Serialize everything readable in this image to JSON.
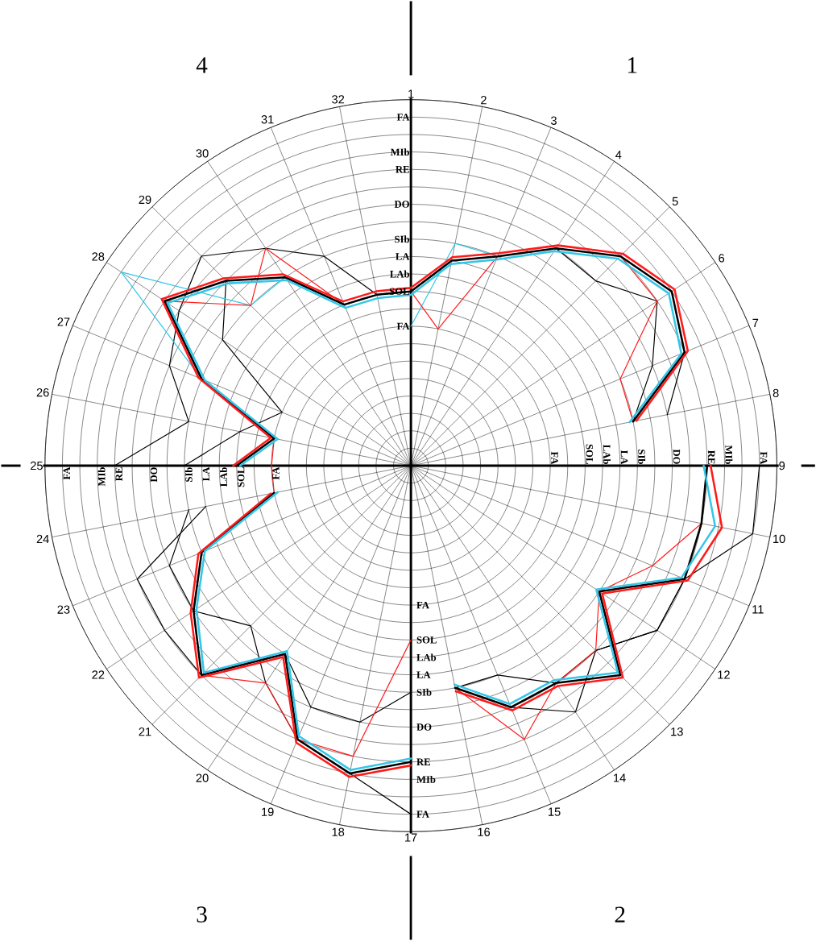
{
  "chart_data": {
    "type": "radar",
    "categories": [
      "1",
      "2",
      "3",
      "4",
      "5",
      "6",
      "7",
      "8",
      "9",
      "10",
      "11",
      "12",
      "13",
      "14",
      "15",
      "16",
      "17",
      "18",
      "19",
      "20",
      "21",
      "22",
      "23",
      "24",
      "25",
      "26",
      "27",
      "28",
      "29",
      "30",
      "31",
      "32"
    ],
    "ylim": [
      0,
      21
    ],
    "yticks": [
      {
        "value": 8,
        "label": "FA"
      },
      {
        "value": 10,
        "label": "SOL"
      },
      {
        "value": 11,
        "label": "LAb"
      },
      {
        "value": 12,
        "label": "LA"
      },
      {
        "value": 13,
        "label": "SIb"
      },
      {
        "value": 15,
        "label": "DO"
      },
      {
        "value": 17,
        "label": "RE"
      },
      {
        "value": 18,
        "label": "MIb"
      },
      {
        "value": 20,
        "label": "FA"
      }
    ],
    "grid": true,
    "annotations": [
      "4",
      "1",
      "3",
      "2"
    ],
    "series": [
      {
        "color": "#000000",
        "values": [
          10,
          12,
          13,
          15,
          15,
          17,
          15,
          13,
          null,
          null,
          null,
          null,
          null,
          null,
          null,
          null,
          null,
          null,
          null,
          null,
          null,
          null,
          null,
          null,
          null,
          null,
          null,
          null,
          null,
          null,
          null,
          null
        ]
      },
      {
        "color": "#000000",
        "values": [
          null,
          null,
          null,
          null,
          null,
          null,
          null,
          null,
          20,
          20,
          17,
          17,
          15,
          17,
          15,
          13,
          null,
          null,
          null,
          null,
          null,
          null,
          null,
          null,
          null,
          null,
          null,
          null,
          null,
          null,
          null,
          null
        ]
      },
      {
        "color": "#000000",
        "values": [
          null,
          null,
          null,
          null,
          null,
          null,
          null,
          null,
          null,
          null,
          null,
          null,
          null,
          null,
          null,
          null,
          20,
          18,
          17,
          15,
          13,
          15,
          15,
          13,
          null,
          null,
          null,
          null,
          null,
          null,
          null,
          null
        ]
      },
      {
        "color": "#000000",
        "values": [
          10,
          null,
          null,
          null,
          null,
          null,
          null,
          null,
          null,
          null,
          null,
          null,
          null,
          null,
          null,
          null,
          null,
          null,
          null,
          null,
          null,
          null,
          null,
          null,
          17,
          13,
          15,
          16,
          17,
          15,
          13,
          10
        ]
      },
      {
        "color": "#000000",
        "values": [
          null,
          null,
          null,
          null,
          17,
          18,
          17,
          15,
          null,
          null,
          null,
          null,
          null,
          null,
          null,
          null,
          null,
          null,
          null,
          null,
          null,
          null,
          null,
          null,
          null,
          null,
          null,
          null,
          null,
          null,
          null,
          null
        ]
      },
      {
        "color": "#000000",
        "values": [
          null,
          null,
          null,
          null,
          null,
          null,
          null,
          null,
          17,
          17,
          17,
          17,
          15,
          15,
          13,
          13,
          null,
          null,
          null,
          null,
          null,
          null,
          null,
          null,
          null,
          null,
          null,
          null,
          null,
          null,
          null,
          null
        ]
      },
      {
        "color": "#000000",
        "values": [
          null,
          null,
          null,
          null,
          null,
          null,
          null,
          null,
          null,
          null,
          null,
          null,
          null,
          null,
          null,
          null,
          13,
          15,
          15,
          13,
          17,
          17,
          17,
          12,
          null,
          null,
          null,
          null,
          null,
          null,
          null,
          null
        ]
      },
      {
        "color": "#000000",
        "values": [
          10,
          null,
          null,
          null,
          null,
          null,
          null,
          null,
          null,
          null,
          null,
          null,
          null,
          null,
          null,
          null,
          null,
          null,
          null,
          null,
          null,
          null,
          null,
          null,
          13,
          10,
          8,
          13,
          15,
          13,
          10,
          10
        ]
      },
      {
        "color": "#33c6e8",
        "values": [
          8,
          13,
          13,
          null,
          null,
          null,
          null,
          null,
          null,
          null,
          null,
          null,
          null,
          null,
          null,
          null,
          null,
          null,
          null,
          null,
          null,
          null,
          null,
          null,
          null,
          null,
          null,
          null,
          null,
          null,
          null,
          null
        ]
      },
      {
        "color": "#33c6e8",
        "values": [
          10,
          null,
          null,
          null,
          null,
          null,
          null,
          null,
          null,
          null,
          null,
          null,
          null,
          null,
          null,
          null,
          null,
          null,
          null,
          null,
          null,
          null,
          null,
          null,
          10,
          8,
          13,
          20,
          13,
          13,
          10,
          10
        ]
      },
      {
        "color": "#ff1a1a",
        "values": [
          10,
          8,
          13,
          null,
          null,
          null,
          null,
          null,
          null,
          null,
          null,
          null,
          null,
          null,
          null,
          null,
          null,
          null,
          null,
          null,
          null,
          null,
          null,
          null,
          null,
          null,
          null,
          null,
          null,
          null,
          null,
          null
        ]
      },
      {
        "color": "#ff1a1a",
        "values": [
          null,
          null,
          null,
          null,
          17,
          17,
          13,
          13,
          null,
          null,
          null,
          null,
          null,
          null,
          null,
          null,
          null,
          null,
          null,
          null,
          null,
          null,
          null,
          null,
          null,
          null,
          null,
          null,
          null,
          null,
          null,
          null
        ]
      },
      {
        "color": "#ff1a1a",
        "values": [
          null,
          null,
          null,
          null,
          null,
          null,
          null,
          null,
          17,
          17,
          15,
          13,
          15,
          15,
          17,
          13,
          null,
          null,
          null,
          null,
          null,
          null,
          null,
          null,
          null,
          null,
          null,
          null,
          null,
          null,
          null,
          null
        ]
      },
      {
        "color": "#ff1a1a",
        "values": [
          null,
          null,
          null,
          null,
          null,
          null,
          null,
          null,
          null,
          null,
          null,
          null,
          null,
          null,
          null,
          null,
          10,
          17,
          17,
          15,
          17,
          15,
          13,
          8,
          8,
          8,
          null,
          null,
          null,
          null,
          null,
          null
        ]
      },
      {
        "color": "#ff1a1a",
        "values": [
          null,
          null,
          null,
          null,
          null,
          null,
          null,
          null,
          null,
          null,
          null,
          null,
          null,
          null,
          null,
          null,
          null,
          null,
          null,
          null,
          null,
          null,
          null,
          null,
          null,
          null,
          null,
          17,
          13,
          15,
          10,
          null
        ]
      },
      {
        "color": "#000000",
        "values": [
          10,
          12,
          13,
          15,
          17,
          18,
          17,
          13,
          null,
          null,
          null,
          null,
          null,
          null,
          null,
          null,
          null,
          null,
          null,
          null,
          null,
          null,
          null,
          null,
          null,
          null,
          null,
          null,
          null,
          null,
          null,
          null
        ]
      },
      {
        "color": "#000000",
        "values": [
          null,
          null,
          null,
          null,
          null,
          null,
          null,
          null,
          17,
          17,
          17,
          13,
          17,
          15,
          15,
          13,
          null,
          null,
          null,
          null,
          null,
          null,
          null,
          null,
          null,
          null,
          null,
          null,
          null,
          null,
          null,
          null
        ]
      },
      {
        "color": "#000000",
        "values": [
          null,
          null,
          null,
          null,
          null,
          null,
          null,
          null,
          null,
          null,
          null,
          null,
          null,
          null,
          null,
          null,
          17,
          18,
          17,
          13,
          17,
          15,
          13,
          8,
          null,
          null,
          null,
          null,
          null,
          null,
          null,
          null
        ]
      },
      {
        "color": "#000000",
        "values": [
          10,
          null,
          null,
          null,
          null,
          null,
          null,
          null,
          null,
          null,
          null,
          null,
          null,
          null,
          null,
          null,
          null,
          null,
          null,
          null,
          null,
          null,
          null,
          null,
          10,
          8,
          13,
          17,
          15,
          13,
          10,
          10
        ]
      },
      {
        "color": "#33c6e8",
        "values": [
          9.8,
          11.8,
          12.8,
          14.8,
          16.8,
          17.8,
          16.8,
          12.8,
          null,
          null,
          null,
          null,
          null,
          null,
          null,
          null,
          null,
          null,
          null,
          null,
          null,
          null,
          null,
          null,
          null,
          null,
          null,
          null,
          null,
          null,
          null,
          null
        ]
      },
      {
        "color": "#33c6e8",
        "values": [
          null,
          null,
          null,
          null,
          null,
          null,
          null,
          null,
          16.8,
          17.8,
          16.8,
          12.8,
          16.8,
          14.8,
          14.8,
          12.8,
          null,
          null,
          null,
          null,
          null,
          null,
          null,
          null,
          null,
          null,
          null,
          null,
          null,
          null,
          null,
          null
        ]
      },
      {
        "color": "#33c6e8",
        "values": [
          null,
          null,
          null,
          null,
          null,
          null,
          null,
          null,
          null,
          null,
          null,
          null,
          null,
          null,
          null,
          null,
          16.8,
          17.8,
          16.8,
          12.8,
          16.8,
          14.8,
          12.8,
          7.8,
          null,
          null,
          null,
          null,
          null,
          null,
          null,
          null
        ]
      },
      {
        "color": "#33c6e8",
        "values": [
          9.8,
          null,
          null,
          null,
          null,
          null,
          null,
          null,
          null,
          null,
          null,
          null,
          null,
          null,
          null,
          null,
          null,
          null,
          null,
          null,
          null,
          null,
          null,
          null,
          9.8,
          7.8,
          12.8,
          16.8,
          14.8,
          12.8,
          9.8,
          9.8
        ]
      },
      {
        "color": "#ff1a1a",
        "values": [
          10.2,
          12.2,
          13.2,
          15.2,
          17.2,
          18.2,
          17.2,
          13.2,
          null,
          null,
          null,
          null,
          null,
          null,
          null,
          null,
          null,
          null,
          null,
          null,
          null,
          null,
          null,
          null,
          null,
          null,
          null,
          null,
          null,
          null,
          null,
          null
        ]
      },
      {
        "color": "#ff1a1a",
        "values": [
          null,
          null,
          null,
          null,
          null,
          null,
          null,
          null,
          17.2,
          18.2,
          17.2,
          13.2,
          17.2,
          15.2,
          15.2,
          13.2,
          null,
          null,
          null,
          null,
          null,
          null,
          null,
          null,
          null,
          null,
          null,
          null,
          null,
          null,
          null,
          null
        ]
      },
      {
        "color": "#ff1a1a",
        "values": [
          null,
          null,
          null,
          null,
          null,
          null,
          null,
          null,
          null,
          null,
          null,
          null,
          null,
          null,
          null,
          null,
          17.2,
          18.2,
          17.2,
          13.2,
          17.2,
          15.2,
          13.2,
          8.2,
          null,
          null,
          null,
          null,
          null,
          null,
          null,
          null
        ]
      },
      {
        "color": "#ff1a1a",
        "values": [
          10.2,
          null,
          null,
          null,
          null,
          null,
          null,
          null,
          null,
          null,
          null,
          null,
          null,
          null,
          null,
          null,
          null,
          null,
          null,
          null,
          null,
          null,
          null,
          null,
          10.2,
          8.2,
          13.2,
          17.2,
          15.2,
          13.2,
          10.2,
          10.2
        ]
      }
    ]
  }
}
